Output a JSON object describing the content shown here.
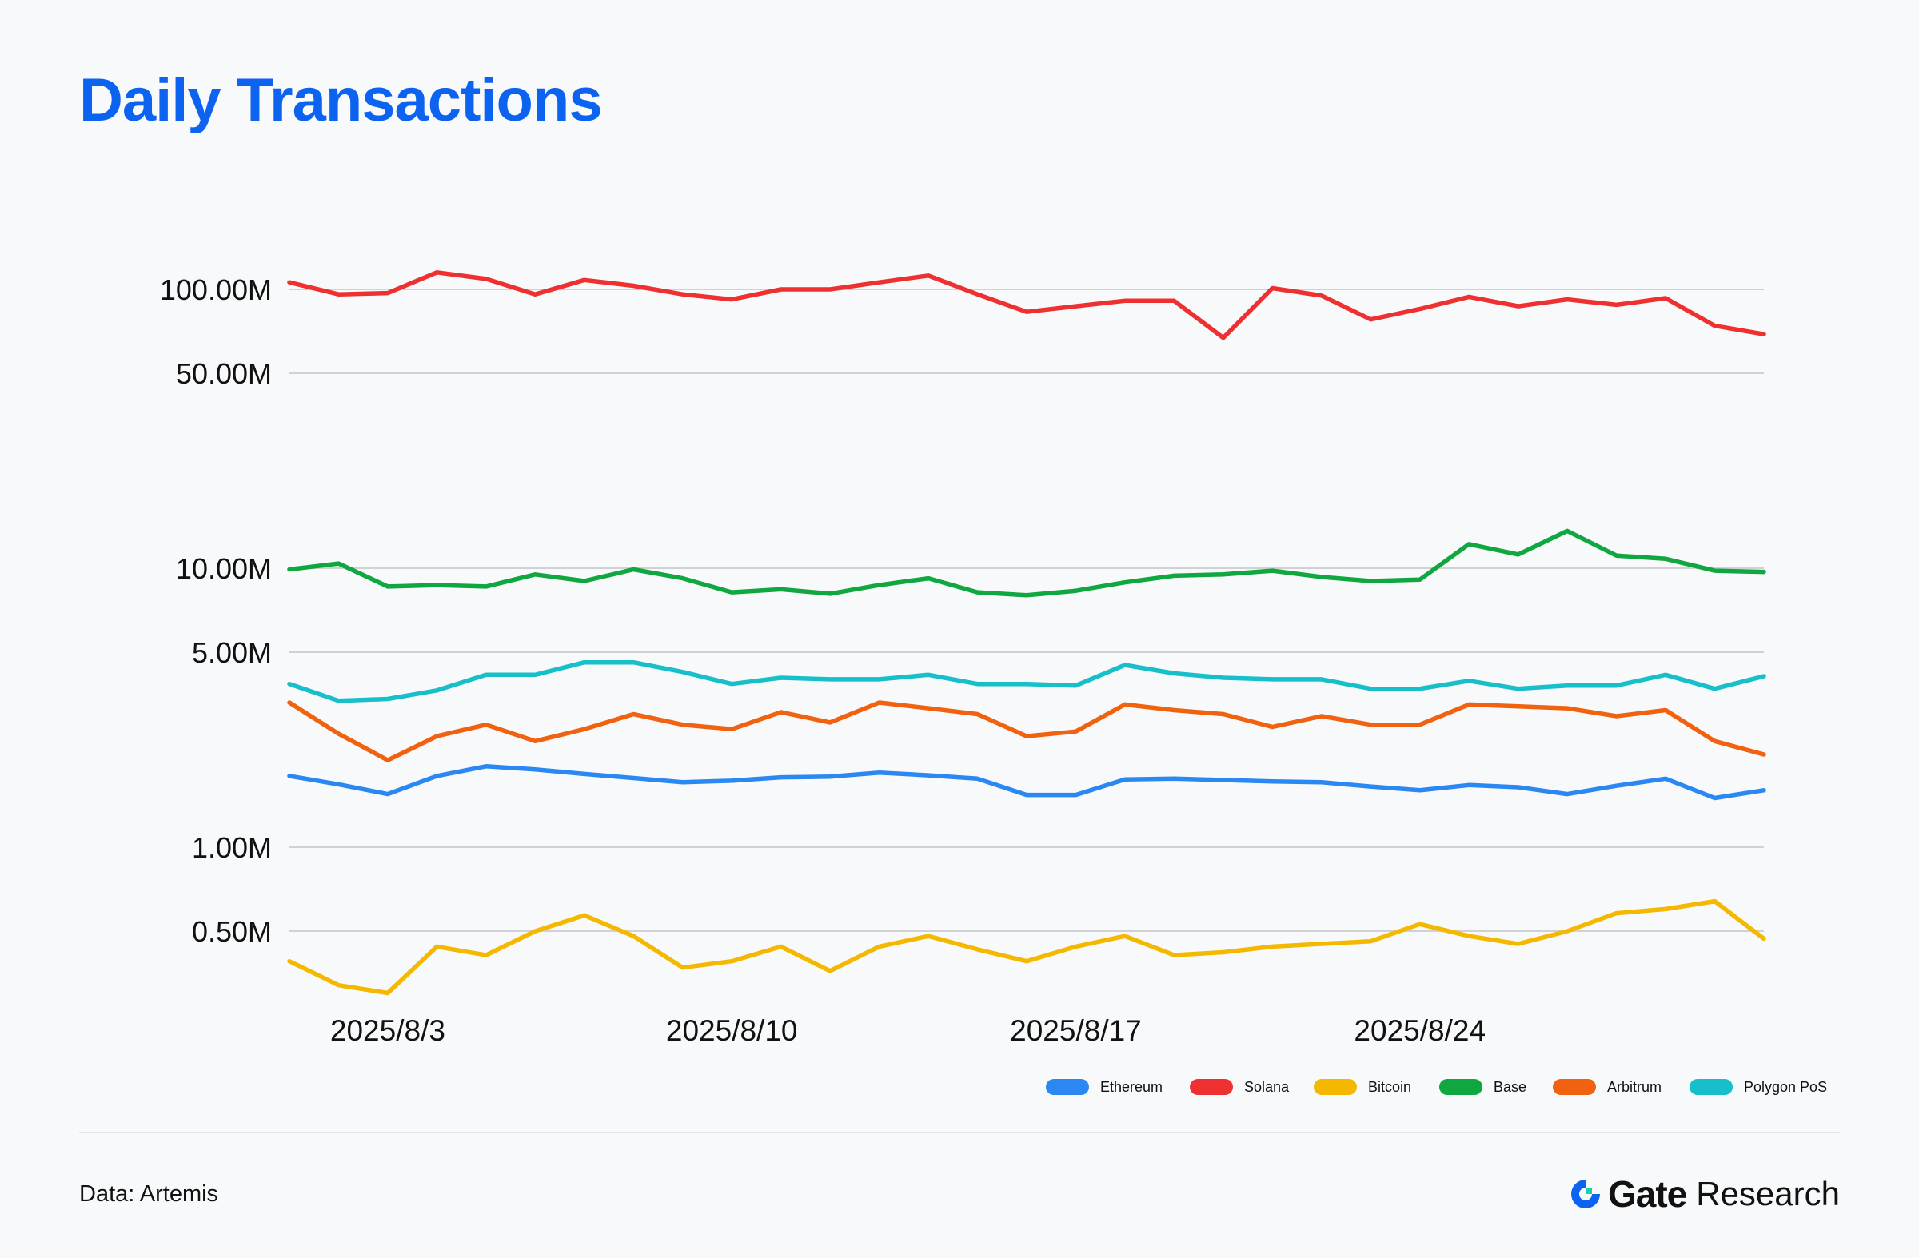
{
  "page": {
    "title": "Daily Transactions",
    "source": "Data: Artemis",
    "brand_name": "Gate",
    "brand_suffix": "Research",
    "brand_icon": "gate-logo-icon"
  },
  "colors": {
    "title": "#0b63f0",
    "Ethereum": "#2b87f2",
    "Solana": "#ee3030",
    "Bitcoin": "#f5b800",
    "Base": "#10a640",
    "Arbitrum": "#f0620f",
    "Polygon PoS": "#16bfc9"
  },
  "chart_data": {
    "type": "line",
    "title": "Daily Transactions",
    "xlabel": "",
    "ylabel": "",
    "y_scale": "log",
    "ylim": [
      300000,
      130000000
    ],
    "grid": true,
    "legend_position": "bottom-right",
    "yticks": [
      {
        "value": 100000000,
        "label": "100.00M"
      },
      {
        "value": 50000000,
        "label": "50.00M"
      },
      {
        "value": 10000000,
        "label": "10.00M"
      },
      {
        "value": 5000000,
        "label": "5.00M"
      },
      {
        "value": 1000000,
        "label": "1.00M"
      },
      {
        "value": 500000,
        "label": "0.50M"
      }
    ],
    "x": [
      "2025/8/1",
      "2025/8/2",
      "2025/8/3",
      "2025/8/4",
      "2025/8/5",
      "2025/8/6",
      "2025/8/7",
      "2025/8/8",
      "2025/8/9",
      "2025/8/10",
      "2025/8/11",
      "2025/8/12",
      "2025/8/13",
      "2025/8/14",
      "2025/8/15",
      "2025/8/16",
      "2025/8/17",
      "2025/8/18",
      "2025/8/19",
      "2025/8/20",
      "2025/8/21",
      "2025/8/22",
      "2025/8/23",
      "2025/8/24",
      "2025/8/25",
      "2025/8/26",
      "2025/8/27",
      "2025/8/28",
      "2025/8/29",
      "2025/8/30",
      "2025/8/31"
    ],
    "xticks": [
      {
        "index": 2,
        "label": "2025/8/3"
      },
      {
        "index": 9,
        "label": "2025/8/10"
      },
      {
        "index": 16,
        "label": "2025/8/17"
      },
      {
        "index": 23,
        "label": "2025/8/24"
      }
    ],
    "series": [
      {
        "name": "Ethereum",
        "values": [
          1.8,
          1.68,
          1.55,
          1.8,
          1.95,
          1.9,
          1.83,
          1.77,
          1.71,
          1.73,
          1.78,
          1.79,
          1.85,
          1.81,
          1.76,
          1.54,
          1.54,
          1.75,
          1.76,
          1.74,
          1.72,
          1.71,
          1.65,
          1.6,
          1.67,
          1.64,
          1.55,
          1.66,
          1.76,
          1.5,
          1.6
        ],
        "unit": "M"
      },
      {
        "name": "Solana",
        "values": [
          106,
          96,
          97,
          115,
          109,
          96,
          108,
          103,
          96,
          92,
          100,
          100,
          106,
          112,
          96,
          83,
          87,
          91,
          91,
          67,
          101,
          95,
          78,
          85,
          94,
          87,
          92,
          88,
          93,
          74,
          69
        ],
        "unit": "M"
      },
      {
        "name": "Bitcoin",
        "values": [
          0.39,
          0.32,
          0.3,
          0.44,
          0.41,
          0.5,
          0.57,
          0.48,
          0.37,
          0.39,
          0.44,
          0.36,
          0.44,
          0.48,
          0.43,
          0.39,
          0.44,
          0.48,
          0.41,
          0.42,
          0.44,
          0.45,
          0.46,
          0.53,
          0.48,
          0.45,
          0.5,
          0.58,
          0.6,
          0.64,
          0.47
        ],
        "unit": "M"
      },
      {
        "name": "Base",
        "values": [
          9.9,
          10.4,
          8.6,
          8.7,
          8.6,
          9.5,
          9.0,
          9.9,
          9.2,
          8.2,
          8.4,
          8.1,
          8.7,
          9.2,
          8.2,
          8.0,
          8.3,
          8.9,
          9.4,
          9.5,
          9.8,
          9.3,
          9.0,
          9.1,
          12.2,
          11.2,
          13.6,
          11.1,
          10.8,
          9.8,
          9.7
        ],
        "unit": "M"
      },
      {
        "name": "Arbitrum",
        "values": [
          3.3,
          2.55,
          2.05,
          2.5,
          2.75,
          2.4,
          2.65,
          3.0,
          2.75,
          2.65,
          3.05,
          2.8,
          3.3,
          3.15,
          3.0,
          2.5,
          2.6,
          3.25,
          3.1,
          3.0,
          2.7,
          2.95,
          2.75,
          2.75,
          3.25,
          3.2,
          3.15,
          2.95,
          3.1,
          2.4,
          2.15
        ],
        "unit": "M"
      },
      {
        "name": "Polygon PoS",
        "values": [
          3.85,
          3.35,
          3.4,
          3.65,
          4.15,
          4.15,
          4.6,
          4.6,
          4.25,
          3.85,
          4.05,
          4.0,
          4.0,
          4.15,
          3.85,
          3.85,
          3.8,
          4.5,
          4.2,
          4.05,
          4.0,
          4.0,
          3.7,
          3.7,
          3.95,
          3.7,
          3.8,
          3.8,
          4.15,
          3.7,
          4.1
        ],
        "unit": "M"
      }
    ],
    "legend": [
      "Ethereum",
      "Solana",
      "Bitcoin",
      "Base",
      "Arbitrum",
      "Polygon PoS"
    ]
  }
}
